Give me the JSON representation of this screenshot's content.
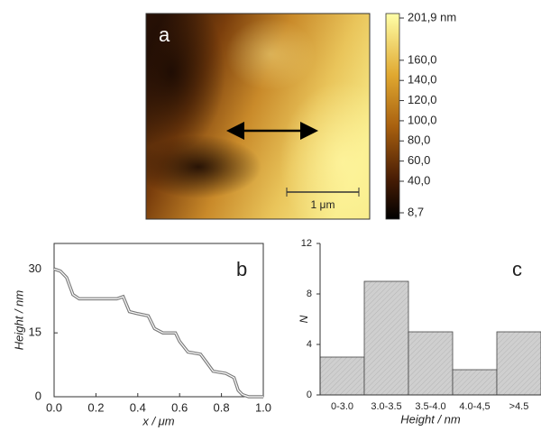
{
  "chart_data": [
    {
      "type": "image",
      "panel_label": "a",
      "scale_bar_label": "1 μm",
      "zlim": [
        8.7,
        201.9
      ],
      "zticks": [
        {
          "value": 201.9,
          "label": "201,9 nm"
        },
        {
          "value": 160,
          "label": "160,0"
        },
        {
          "value": 140,
          "label": "140,0"
        },
        {
          "value": 120,
          "label": "120,0"
        },
        {
          "value": 100,
          "label": "100,0"
        },
        {
          "value": 80,
          "label": "80,0"
        },
        {
          "value": 60,
          "label": "60,0"
        },
        {
          "value": 40,
          "label": "40,0"
        },
        {
          "value": 8.7,
          "label": "8,7"
        }
      ]
    },
    {
      "type": "line",
      "panel_label": "b",
      "xlabel": "x / μm",
      "ylabel": "Height / nm",
      "x": [
        0,
        0.03,
        0.06,
        0.09,
        0.12,
        0.2,
        0.3,
        0.33,
        0.36,
        0.4,
        0.45,
        0.48,
        0.52,
        0.58,
        0.6,
        0.64,
        0.7,
        0.73,
        0.76,
        0.82,
        0.86,
        0.88,
        0.9,
        0.93,
        1.0
      ],
      "values": [
        30,
        29.5,
        28,
        24,
        23,
        23,
        23,
        23.5,
        20,
        19.5,
        19,
        16,
        15,
        15,
        13,
        10.5,
        10,
        8,
        6,
        5.5,
        4.5,
        1.5,
        0.5,
        0,
        0
      ],
      "color": "#7a7a7a",
      "xlim": [
        0,
        1
      ],
      "xticks": [
        {
          "value": 0,
          "label": "0.0"
        },
        0.2,
        0.4,
        0.6,
        0.8,
        {
          "value": 1,
          "label": "1.0"
        }
      ],
      "ylim": [
        0,
        36
      ],
      "yticks": [
        0,
        15,
        30
      ]
    },
    {
      "type": "bar",
      "panel_label": "c",
      "xlabel": "Height / nm",
      "ylabel": "N",
      "categories": [
        "0-3.0",
        "3.0-3.5",
        "3.5-4.0",
        "4.0-4,5",
        ">4.5"
      ],
      "values": [
        3,
        9,
        5,
        2,
        5
      ],
      "color": "#cfcfcf",
      "ylim": [
        0,
        12
      ],
      "yticks": [
        0,
        4,
        8,
        12
      ]
    }
  ]
}
